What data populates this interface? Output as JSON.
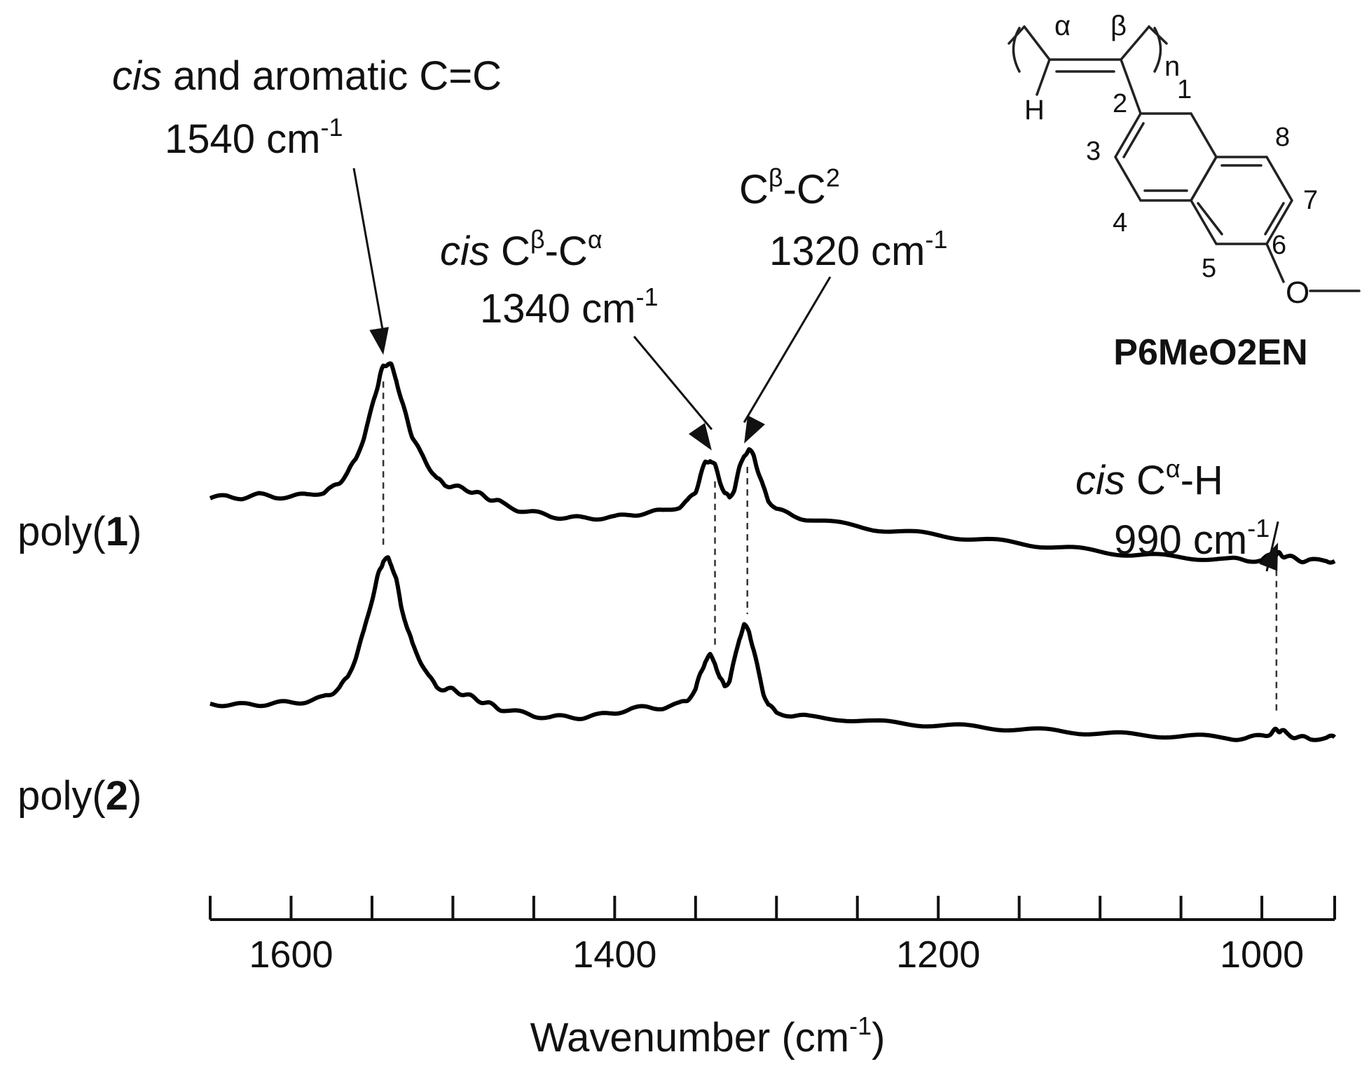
{
  "chart_data": {
    "type": "line",
    "xlabel_main": "Wavenumber (cm",
    "xlabel_sup": "-1",
    "xlabel_tail": ")",
    "x_reversed": true,
    "xlim": [
      1650,
      955
    ],
    "x_ticks_major": [
      1600,
      1400,
      1200,
      1000
    ],
    "x_ticks_minor": [
      1650,
      1550,
      1500,
      1450,
      1350,
      1300,
      1250,
      1150,
      1100,
      1050,
      955
    ],
    "series": [
      {
        "name_pre": "poly(",
        "name_bold": "1",
        "name_post": ")",
        "x": [
          1650,
          1640,
          1630,
          1620,
          1610,
          1600,
          1590,
          1580,
          1575,
          1570,
          1565,
          1560,
          1555,
          1550,
          1547,
          1545,
          1543,
          1540,
          1538,
          1535,
          1532,
          1528,
          1525,
          1520,
          1515,
          1510,
          1505,
          1500,
          1495,
          1490,
          1485,
          1480,
          1475,
          1470,
          1460,
          1450,
          1440,
          1430,
          1420,
          1410,
          1400,
          1390,
          1380,
          1370,
          1360,
          1355,
          1350,
          1347,
          1344,
          1341,
          1338,
          1335,
          1332,
          1329,
          1326,
          1323,
          1320,
          1317,
          1314,
          1311,
          1308,
          1305,
          1300,
          1290,
          1280,
          1260,
          1240,
          1220,
          1200,
          1180,
          1160,
          1140,
          1120,
          1100,
          1080,
          1060,
          1040,
          1020,
          1010,
          1000,
          995,
          992,
          990,
          988,
          985,
          980,
          975,
          970,
          960,
          955
        ],
        "y": [
          0.04,
          0.05,
          0.045,
          0.06,
          0.05,
          0.05,
          0.06,
          0.08,
          0.1,
          0.14,
          0.2,
          0.28,
          0.42,
          0.6,
          0.72,
          0.8,
          0.86,
          0.88,
          0.86,
          0.78,
          0.65,
          0.52,
          0.42,
          0.32,
          0.24,
          0.16,
          0.12,
          0.12,
          0.1,
          0.09,
          0.07,
          0.05,
          0.03,
          0.01,
          -0.03,
          -0.05,
          -0.07,
          -0.08,
          -0.085,
          -0.08,
          -0.08,
          -0.06,
          -0.05,
          -0.04,
          -0.01,
          0.02,
          0.08,
          0.18,
          0.26,
          0.28,
          0.24,
          0.15,
          0.07,
          0.04,
          0.1,
          0.22,
          0.31,
          0.34,
          0.3,
          0.2,
          0.1,
          0.03,
          -0.03,
          -0.07,
          -0.09,
          -0.12,
          -0.15,
          -0.17,
          -0.19,
          -0.21,
          -0.23,
          -0.25,
          -0.27,
          -0.29,
          -0.31,
          -0.32,
          -0.33,
          -0.34,
          -0.345,
          -0.34,
          -0.32,
          -0.31,
          -0.305,
          -0.31,
          -0.32,
          -0.335,
          -0.345,
          -0.35,
          -0.345,
          -0.35
        ]
      },
      {
        "name_pre": "poly(",
        "name_bold": "2",
        "name_post": ")",
        "x": [
          1650,
          1640,
          1630,
          1620,
          1610,
          1600,
          1590,
          1580,
          1575,
          1570,
          1565,
          1560,
          1555,
          1550,
          1547,
          1545,
          1543,
          1540,
          1538,
          1535,
          1532,
          1528,
          1525,
          1520,
          1515,
          1510,
          1505,
          1500,
          1495,
          1490,
          1485,
          1480,
          1475,
          1470,
          1460,
          1450,
          1440,
          1430,
          1420,
          1410,
          1400,
          1390,
          1380,
          1370,
          1360,
          1355,
          1350,
          1347,
          1344,
          1341,
          1338,
          1335,
          1332,
          1329,
          1326,
          1323,
          1320,
          1317,
          1314,
          1311,
          1308,
          1305,
          1300,
          1290,
          1280,
          1260,
          1240,
          1220,
          1200,
          1180,
          1160,
          1140,
          1120,
          1100,
          1080,
          1060,
          1040,
          1020,
          1010,
          1000,
          995,
          992,
          990,
          988,
          985,
          980,
          975,
          970,
          960,
          955
        ],
        "y": [
          -0.89,
          -0.89,
          -0.895,
          -0.89,
          -0.885,
          -0.88,
          -0.87,
          -0.85,
          -0.82,
          -0.79,
          -0.72,
          -0.6,
          -0.44,
          -0.24,
          -0.12,
          -0.05,
          0.0,
          0.01,
          -0.02,
          -0.12,
          -0.28,
          -0.42,
          -0.52,
          -0.62,
          -0.72,
          -0.78,
          -0.8,
          -0.8,
          -0.82,
          -0.84,
          -0.86,
          -0.88,
          -0.9,
          -0.92,
          -0.94,
          -0.96,
          -0.97,
          -0.97,
          -0.97,
          -0.96,
          -0.94,
          -0.92,
          -0.91,
          -0.91,
          -0.89,
          -0.86,
          -0.8,
          -0.7,
          -0.62,
          -0.59,
          -0.63,
          -0.73,
          -0.78,
          -0.74,
          -0.62,
          -0.48,
          -0.4,
          -0.44,
          -0.55,
          -0.7,
          -0.82,
          -0.9,
          -0.94,
          -0.96,
          -0.97,
          -0.98,
          -1.0,
          -1.01,
          -1.02,
          -1.03,
          -1.04,
          -1.05,
          -1.06,
          -1.07,
          -1.08,
          -1.085,
          -1.09,
          -1.1,
          -1.1,
          -1.09,
          -1.07,
          -1.055,
          -1.05,
          -1.055,
          -1.07,
          -1.09,
          -1.1,
          -1.1,
          -1.1,
          -1.095
        ]
      }
    ],
    "dashed_guides": [
      {
        "x": 1543,
        "series_span": [
          0,
          1
        ]
      },
      {
        "x": 1338,
        "series_span": [
          0,
          1
        ]
      },
      {
        "x": 1318,
        "series_span": [
          0,
          1
        ]
      },
      {
        "x": 991,
        "series_span": [
          0,
          1
        ]
      }
    ],
    "annotations": [
      {
        "line1_italic": "cis",
        "line1": " and aromatic C=C",
        "line2": "1540 cm",
        "sup": "-1",
        "target_x": 1543,
        "target_series": 0
      },
      {
        "line1_italic": "cis",
        "line1": " C",
        "line1_sup1": "β",
        "line1_mid": "-C",
        "line1_sup2": "α",
        "line2": "1340 cm",
        "sup": "-1",
        "target_x": 1340,
        "target_series": 0
      },
      {
        "line1": "C",
        "line1_sup1": "β",
        "line1_mid": "-C",
        "line1_sup2": "2",
        "line2": "1320 cm",
        "sup": "-1",
        "target_x": 1320,
        "target_series": 0
      },
      {
        "line1_italic": "cis",
        "line1": " C",
        "line1_sup1": "α",
        "line1_mid": "-H",
        "line2": "990 cm",
        "sup": "-1",
        "target_x": 990,
        "target_series": 0
      }
    ],
    "structure": {
      "name": "P6MeO2EN",
      "alpha": "α",
      "beta": "β",
      "n": "n",
      "H": "H",
      "O": "O",
      "positions": [
        "1",
        "2",
        "3",
        "4",
        "5",
        "6",
        "7",
        "8"
      ]
    },
    "line_color": "#000000"
  }
}
